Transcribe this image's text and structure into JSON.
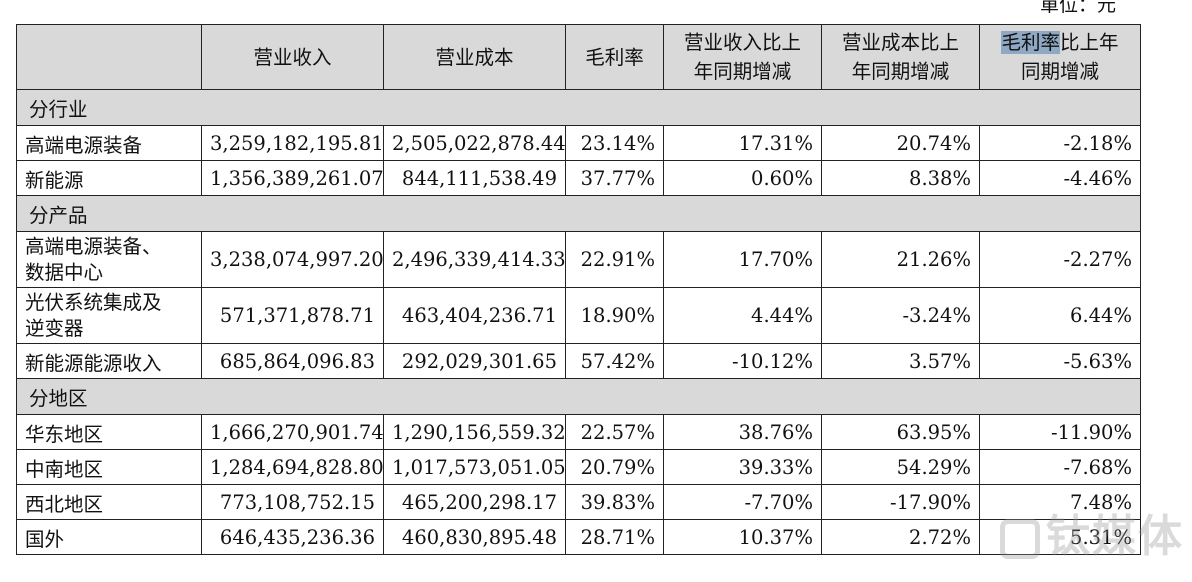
{
  "unit_label": "單位：元",
  "columns": [
    "",
    "营业收入",
    "营业成本",
    "毛利率",
    "营业收入比上年同期增减",
    "营业成本比上年同期增减",
    {
      "hl": "毛利率",
      "rest": "比上年同期增减"
    }
  ],
  "col_lines": {
    "c4": [
      "营业收入比上",
      "年同期增减"
    ],
    "c5": [
      "营业成本比上",
      "年同期增减"
    ],
    "c6": [
      "比上年",
      "同期增减"
    ]
  },
  "sections": [
    {
      "title": "分行业",
      "rows": [
        {
          "label": [
            "高端电源装备"
          ],
          "values": [
            "3,259,182,195.81",
            "2,505,022,878.44",
            "23.14%",
            "17.31%",
            "20.74%",
            "-2.18%"
          ]
        },
        {
          "label": [
            "新能源"
          ],
          "values": [
            "1,356,389,261.07",
            "844,111,538.49",
            "37.77%",
            "0.60%",
            "8.38%",
            "-4.46%"
          ]
        }
      ]
    },
    {
      "title": "分产品",
      "rows": [
        {
          "label": [
            "高端电源装备、",
            "数据中心"
          ],
          "values": [
            "3,238,074,997.20",
            "2,496,339,414.33",
            "22.91%",
            "17.70%",
            "21.26%",
            "-2.27%"
          ]
        },
        {
          "label": [
            "光伏系统集成及",
            "逆变器"
          ],
          "values": [
            "571,371,878.71",
            "463,404,236.71",
            "18.90%",
            "4.44%",
            "-3.24%",
            "6.44%"
          ]
        },
        {
          "label": [
            "新能源能源收入"
          ],
          "values": [
            "685,864,096.83",
            "292,029,301.65",
            "57.42%",
            "-10.12%",
            "3.57%",
            "-5.63%"
          ]
        }
      ]
    },
    {
      "title": "分地区",
      "rows": [
        {
          "label": [
            "华东地区"
          ],
          "values": [
            "1,666,270,901.74",
            "1,290,156,559.32",
            "22.57%",
            "38.76%",
            "63.95%",
            "-11.90%"
          ]
        },
        {
          "label": [
            "中南地区"
          ],
          "values": [
            "1,284,694,828.80",
            "1,017,573,051.05",
            "20.79%",
            "39.33%",
            "54.29%",
            "-7.68%"
          ]
        },
        {
          "label": [
            "西北地区"
          ],
          "values": [
            "773,108,752.15",
            "465,200,298.17",
            "39.83%",
            "-7.70%",
            "-17.90%",
            "7.48%"
          ]
        },
        {
          "label": [
            "国外"
          ],
          "values": [
            "646,435,236.36",
            "460,830,895.48",
            "28.71%",
            "10.37%",
            "2.72%",
            "5.31%"
          ]
        }
      ]
    }
  ],
  "watermark": "钛媒体"
}
